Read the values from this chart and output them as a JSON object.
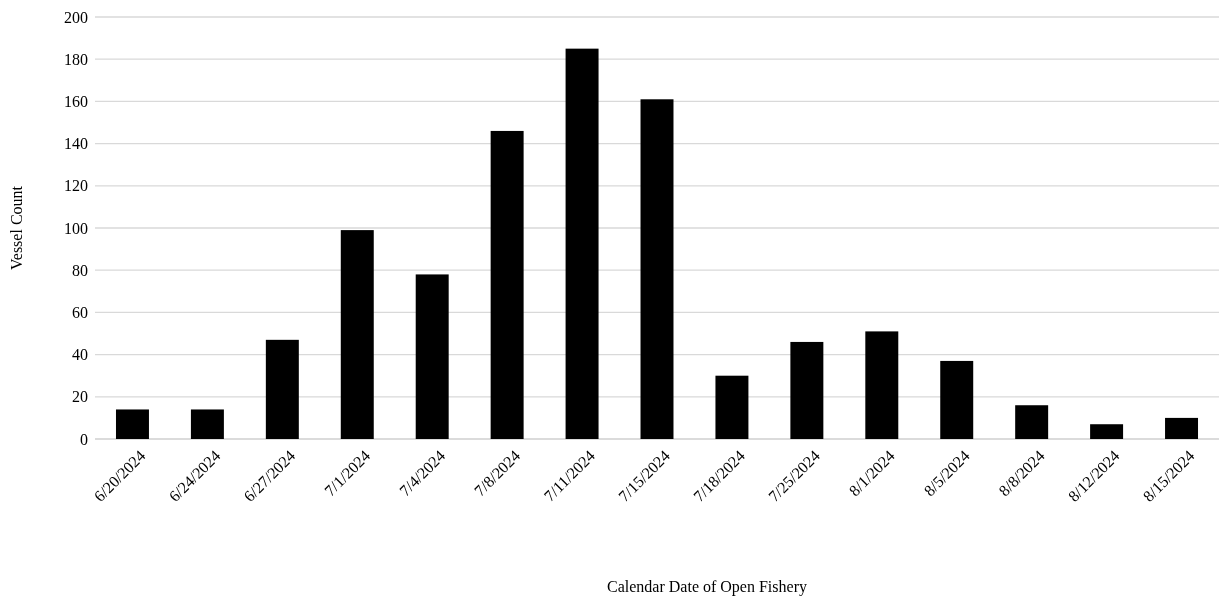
{
  "chart_data": {
    "type": "bar",
    "xlabel": "Calendar Date of Open Fishery",
    "ylabel": "Vessel Count",
    "categories": [
      "6/20/2024",
      "6/24/2024",
      "6/27/2024",
      "7/1/2024",
      "7/4/2024",
      "7/8/2024",
      "7/11/2024",
      "7/15/2024",
      "7/18/2024",
      "7/25/2024",
      "8/1/2024",
      "8/5/2024",
      "8/8/2024",
      "8/12/2024",
      "8/15/2024"
    ],
    "values": [
      14,
      14,
      47,
      99,
      78,
      146,
      185,
      161,
      30,
      46,
      51,
      37,
      16,
      7,
      10
    ],
    "color": "#000000",
    "ylim": [
      0,
      200
    ],
    "yticks": [
      0,
      20,
      40,
      60,
      80,
      100,
      120,
      140,
      160,
      180,
      200
    ],
    "grid": "y"
  }
}
